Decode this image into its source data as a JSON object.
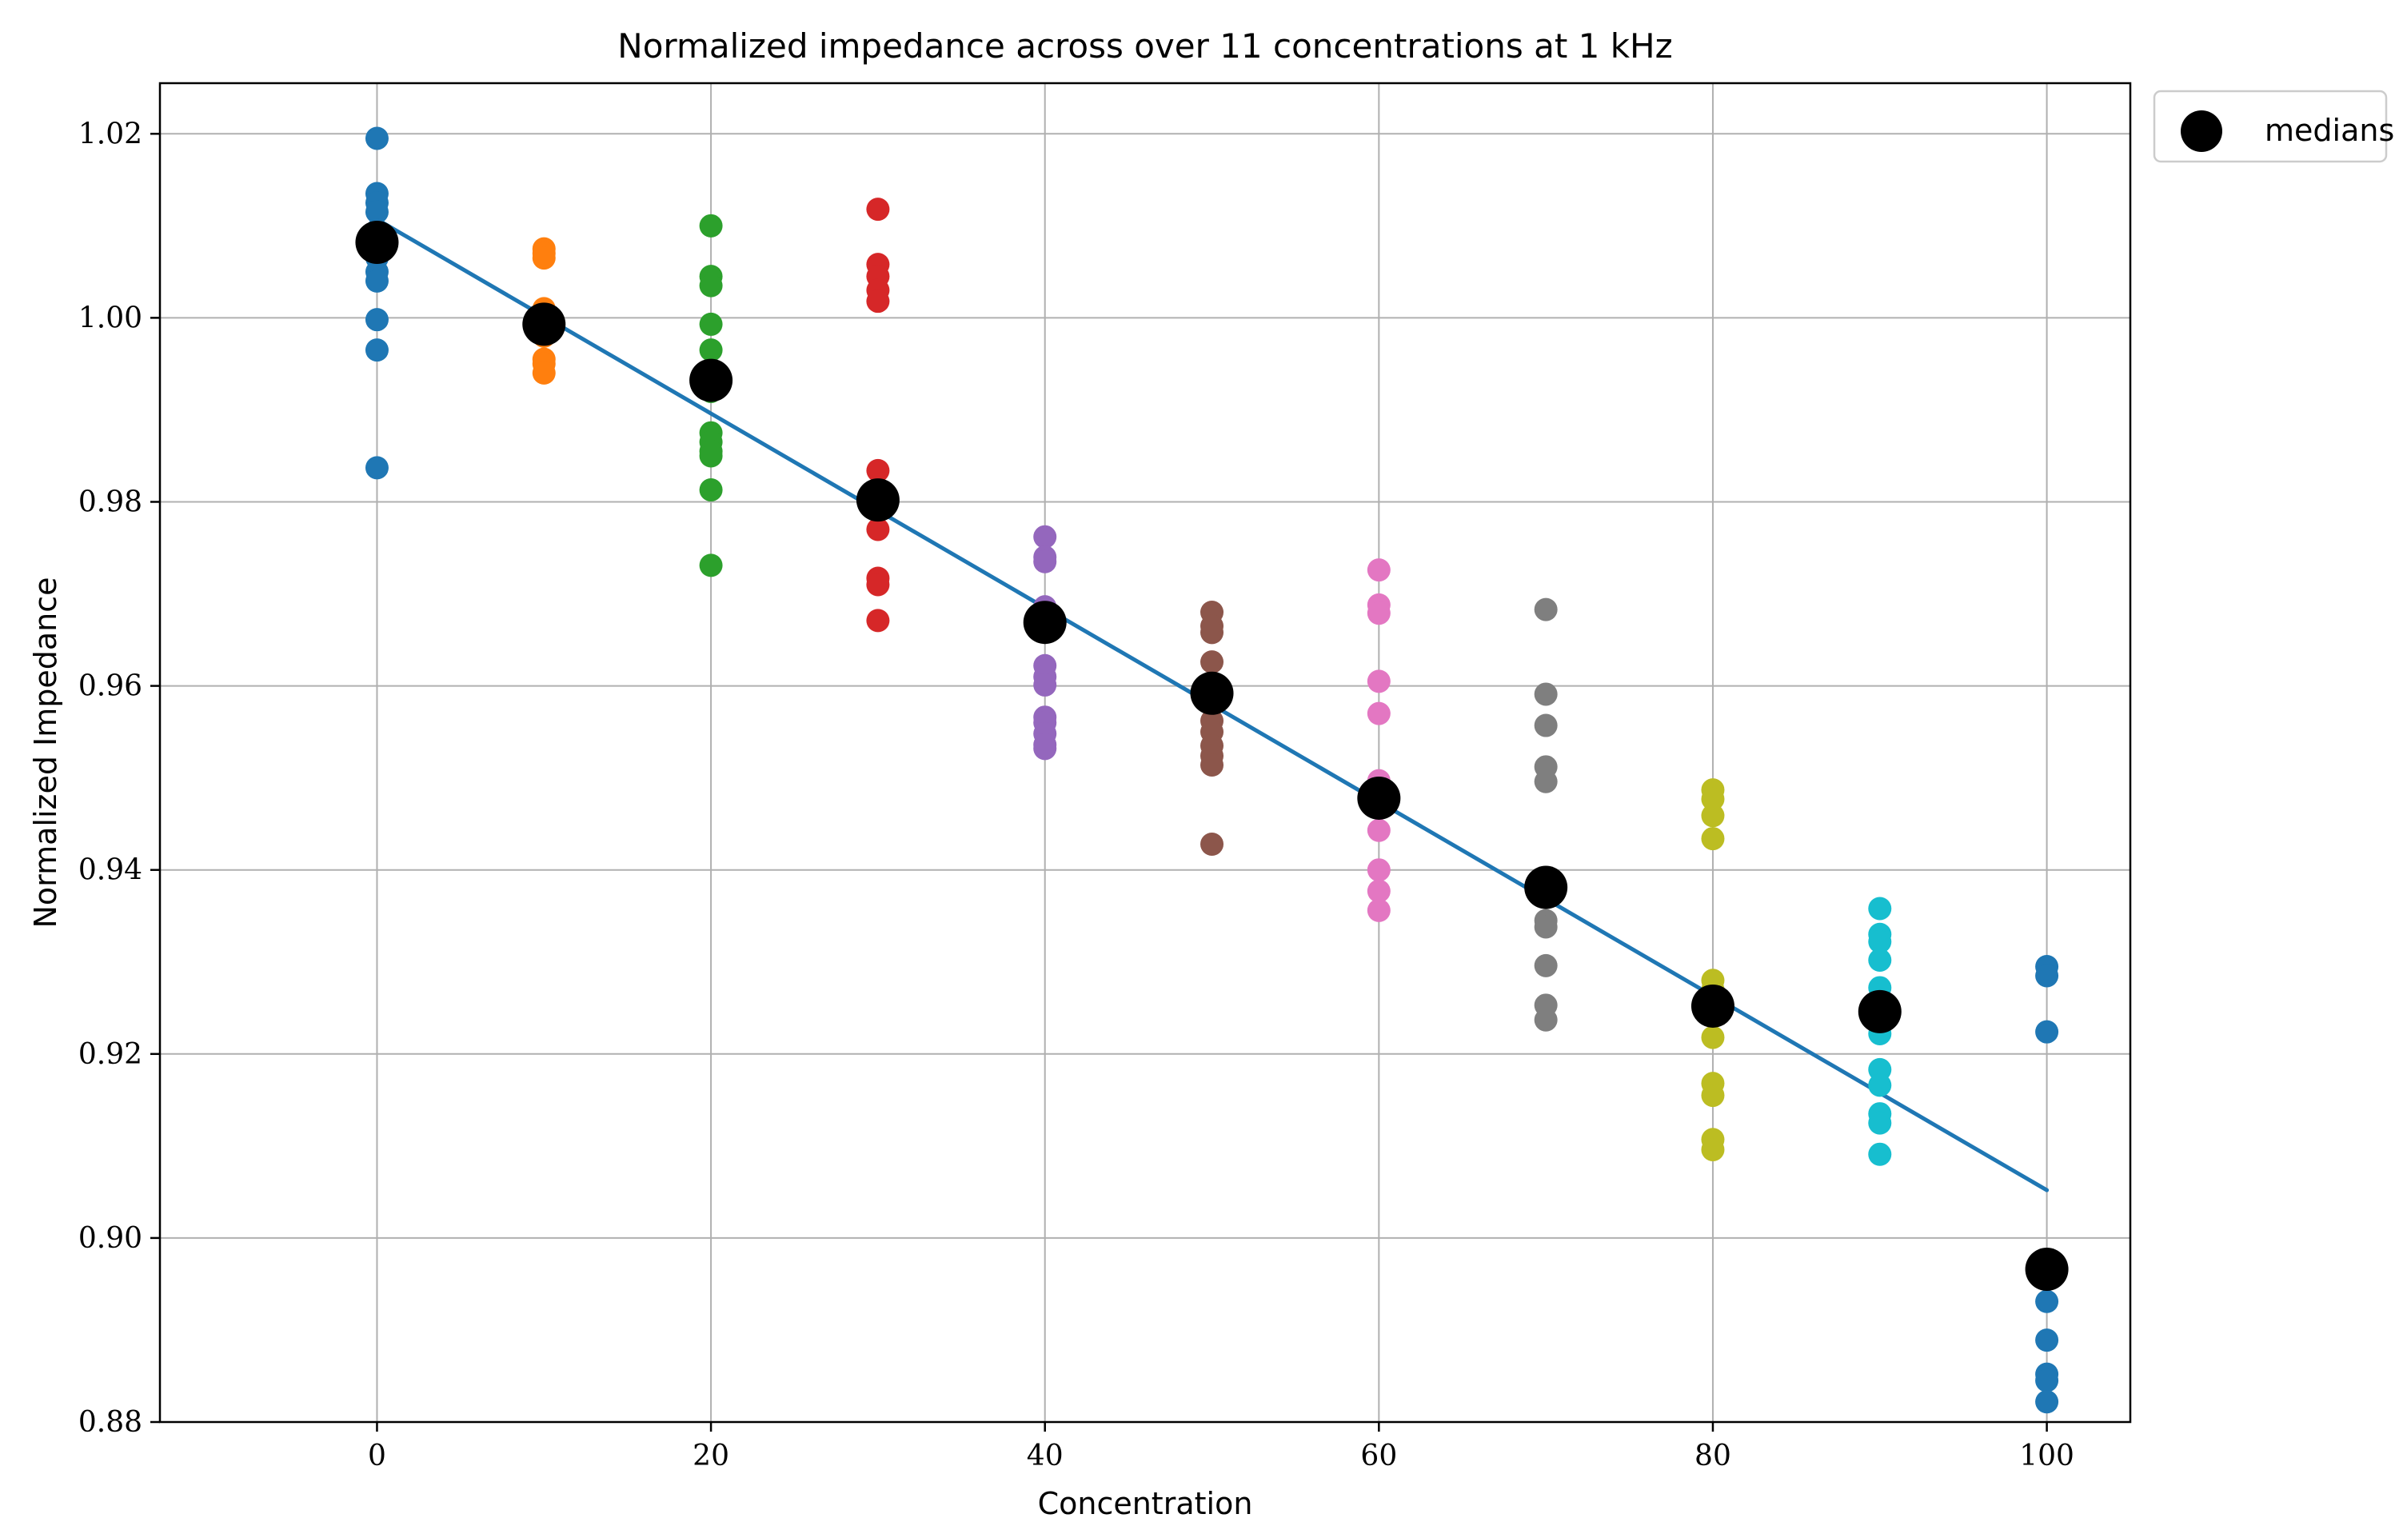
{
  "chart_data": {
    "type": "scatter",
    "title": "Normalized impedance across over 11 concentrations at 1 kHz",
    "xlabel": "Concentration",
    "ylabel": "Normalized Impedance",
    "xlim": [
      -13,
      105
    ],
    "ylim": [
      0.88,
      1.0255
    ],
    "xticks": [
      0,
      20,
      40,
      60,
      80,
      100
    ],
    "xtick_labels": [
      "0",
      "20",
      "40",
      "60",
      "80",
      "100"
    ],
    "yticks": [
      0.88,
      0.9,
      0.92,
      0.94,
      0.96,
      0.98,
      1.0,
      1.02
    ],
    "ytick_labels": [
      "0.88",
      "0.90",
      "0.92",
      "0.94",
      "0.96",
      "0.98",
      "1.00",
      "1.02"
    ],
    "grid": true,
    "legend": {
      "placement": "outside-top-right",
      "entries": [
        "medians"
      ]
    },
    "series": [
      {
        "name": "0",
        "x": 0,
        "color": "#1f77b4",
        "values": [
          1.0195,
          1.0135,
          1.0125,
          1.0115,
          1.0095,
          1.0065,
          1.005,
          1.004,
          0.9998,
          0.9965,
          0.9837
        ]
      },
      {
        "name": "10",
        "x": 10,
        "color": "#ff7f0e",
        "values": [
          1.0075,
          1.007,
          1.0065,
          1.001,
          1.0,
          0.998,
          0.9955,
          0.995,
          0.994
        ]
      },
      {
        "name": "20",
        "x": 20,
        "color": "#2ca02c",
        "values": [
          1.01,
          1.0045,
          1.0035,
          0.9993,
          0.9965,
          0.992,
          0.9875,
          0.9865,
          0.9855,
          0.985,
          0.9813,
          0.9731
        ]
      },
      {
        "name": "30",
        "x": 30,
        "color": "#d62728",
        "values": [
          1.0118,
          1.0058,
          1.0045,
          1.003,
          1.0018,
          0.9834,
          0.9797,
          0.977,
          0.9717,
          0.971,
          0.9671
        ]
      },
      {
        "name": "40",
        "x": 40,
        "color": "#9467bd",
        "values": [
          0.9762,
          0.974,
          0.9735,
          0.9686,
          0.9668,
          0.9622,
          0.961,
          0.9601,
          0.9566,
          0.956,
          0.9548,
          0.9536,
          0.9532
        ]
      },
      {
        "name": "50",
        "x": 50,
        "color": "#8c564b",
        "values": [
          0.968,
          0.9665,
          0.9658,
          0.9626,
          0.9599,
          0.9579,
          0.9562,
          0.955,
          0.9535,
          0.9524,
          0.9514,
          0.9428
        ]
      },
      {
        "name": "60",
        "x": 60,
        "color": "#e377c2",
        "values": [
          0.9726,
          0.9688,
          0.9679,
          0.9605,
          0.957,
          0.9497,
          0.9475,
          0.9443,
          0.94,
          0.9377,
          0.9356
        ]
      },
      {
        "name": "70",
        "x": 70,
        "color": "#7f7f7f",
        "values": [
          0.9683,
          0.9591,
          0.9557,
          0.9512,
          0.9496,
          0.9372,
          0.9345,
          0.9338,
          0.9296,
          0.9253,
          0.9237
        ]
      },
      {
        "name": "80",
        "x": 80,
        "color": "#bcbd22",
        "values": [
          0.9487,
          0.9477,
          0.9459,
          0.9434,
          0.928,
          0.927,
          0.9218,
          0.9168,
          0.9155,
          0.9107,
          0.9096
        ]
      },
      {
        "name": "90",
        "x": 90,
        "color": "#17becf",
        "values": [
          0.9358,
          0.933,
          0.9322,
          0.9302,
          0.9272,
          0.9222,
          0.9183,
          0.9166,
          0.9135,
          0.9125,
          0.9091
        ]
      },
      {
        "name": "100",
        "x": 100,
        "color": "#1f77b4",
        "values": [
          0.9295,
          0.9285,
          0.9224,
          0.8931,
          0.8889,
          0.8852,
          0.8845,
          0.8822
        ]
      }
    ],
    "medians": {
      "name": "medians",
      "color": "#000000",
      "x": [
        0,
        10,
        20,
        30,
        40,
        50,
        60,
        70,
        80,
        90,
        100
      ],
      "values": [
        1.0082,
        0.9993,
        0.9932,
        0.9802,
        0.9669,
        0.9592,
        0.9478,
        0.9381,
        0.9252,
        0.9246,
        0.8966
      ]
    },
    "fit_line": {
      "color": "#1f77b4",
      "x": [
        0,
        100
      ],
      "values": [
        1.0107,
        0.9052
      ]
    }
  }
}
